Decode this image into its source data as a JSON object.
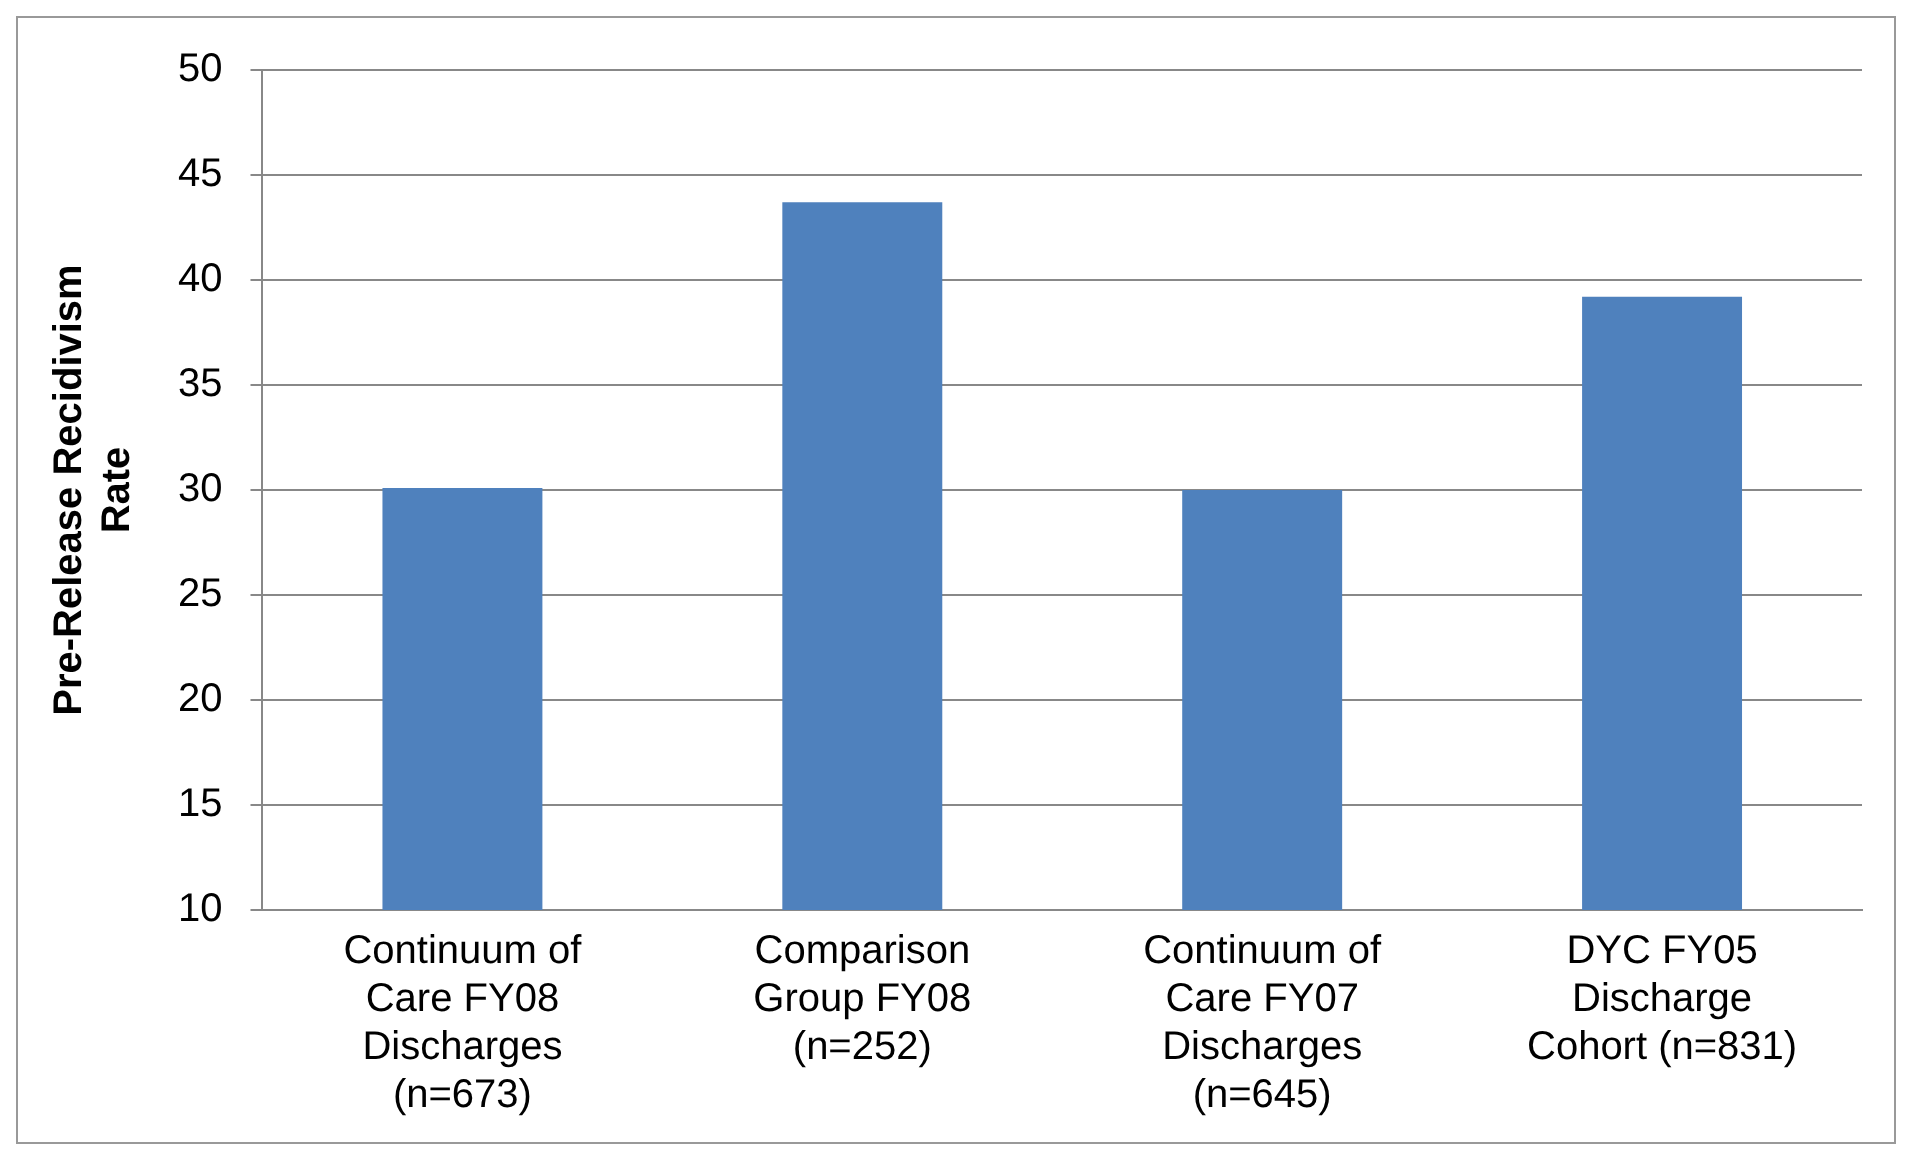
{
  "chart_data": {
    "type": "bar",
    "ylabel": "Pre-Release Recidivism Rate",
    "categories": [
      "Continuum of Care FY08 Discharges (n=673)",
      "Comparison Group FY08 (n=252)",
      "Continuum of Care FY07 Discharges (n=645)",
      "DYC FY05 Discharge Cohort (n=831)"
    ],
    "values": [
      30.1,
      43.7,
      30.0,
      39.2
    ],
    "color": "#4f81bd",
    "ylim": [
      10,
      50
    ],
    "yticks": [
      10,
      15,
      20,
      25,
      30,
      35,
      40,
      45,
      50
    ],
    "grid": "y",
    "legend": false
  }
}
